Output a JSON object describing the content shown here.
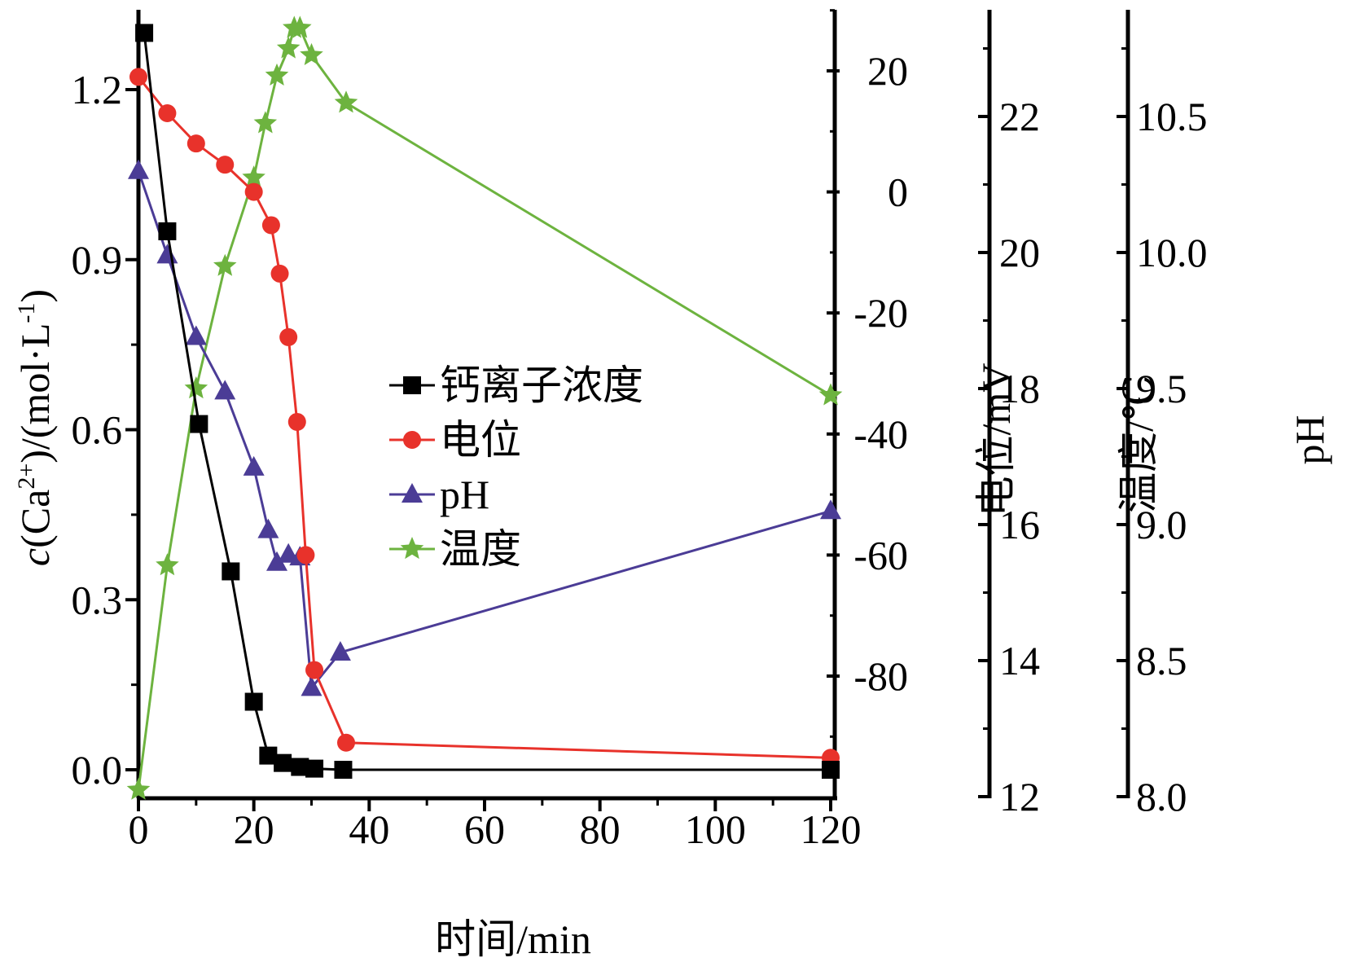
{
  "chart_data": {
    "type": "line",
    "x": [
      0,
      5,
      10,
      15,
      20,
      22.5,
      25,
      26.5,
      28,
      30,
      35,
      120
    ],
    "xlabel": "时间/min",
    "xlim": [
      0,
      120
    ],
    "xticks": [
      "0",
      "20",
      "40",
      "60",
      "80",
      "100",
      "120"
    ],
    "axes": {
      "y1": {
        "label_prefix": "c",
        "label_rest": "(Ca",
        "label_sup": "2+",
        "label_mid": ")/(mol·L",
        "label_sup2": "-1",
        "label_end": ")",
        "lim": [
          0,
          1.3
        ],
        "ticks": [
          "0.0",
          "0.3",
          "0.6",
          "0.9",
          "1.2"
        ],
        "tick_values": [
          0,
          0.3,
          0.6,
          0.9,
          1.2
        ]
      },
      "y2": {
        "label": "电位/mV",
        "lim": [
          -95,
          30
        ],
        "ticks": [
          "20",
          "0",
          "-20",
          "-40",
          "-60",
          "-80"
        ],
        "tick_values": [
          20,
          0,
          -20,
          -40,
          -60,
          -80
        ]
      },
      "y3": {
        "label": "温度/℃",
        "lim": [
          12,
          23.8
        ],
        "ticks": [
          "22",
          "20",
          "18",
          "16",
          "14",
          "12"
        ],
        "tick_values": [
          22,
          20,
          18,
          16,
          14,
          12
        ]
      },
      "y4": {
        "label": "pH",
        "lim": [
          8.0,
          10.9
        ],
        "ticks": [
          "10.5",
          "10.0",
          "9.5",
          "9.0",
          "8.5",
          "8.0"
        ],
        "tick_values": [
          10.5,
          10.0,
          9.5,
          9.0,
          8.5,
          8.0
        ]
      }
    },
    "series": [
      {
        "name": "钙离子浓度",
        "axis": "y1",
        "color": "#000000",
        "marker": "square",
        "x": [
          1,
          5,
          10.5,
          16,
          20,
          22.5,
          25,
          28,
          30.5,
          35.5,
          120
        ],
        "values": [
          1.3,
          0.95,
          0.61,
          0.35,
          0.12,
          0.025,
          0.012,
          0.005,
          0.002,
          0.0,
          0.0
        ]
      },
      {
        "name": "电位",
        "axis": "y2",
        "color": "#e8322b",
        "marker": "circle",
        "x": [
          0,
          5,
          10,
          15,
          20,
          23,
          24.5,
          26,
          27.5,
          29,
          30.5,
          36,
          120
        ],
        "values": [
          19,
          13,
          8,
          4.5,
          0,
          -5.5,
          -13.5,
          -24,
          -38,
          -60,
          -79,
          -91,
          -93.5
        ]
      },
      {
        "name": "pH",
        "axis": "y4",
        "color": "#4b3c96",
        "marker": "triangle",
        "x": [
          0,
          5,
          10,
          15,
          20,
          22.5,
          24,
          26,
          28,
          30,
          35,
          120
        ],
        "values": [
          10.3,
          9.99,
          9.69,
          9.49,
          9.21,
          8.98,
          8.86,
          8.89,
          8.88,
          8.4,
          8.53,
          9.05
        ]
      },
      {
        "name": "温度",
        "axis": "y3",
        "color": "#6db33f",
        "marker": "star",
        "x": [
          0,
          5,
          10,
          15,
          20,
          22,
          24,
          26,
          27,
          28,
          30,
          36,
          120
        ],
        "values": [
          12.1,
          15.4,
          18.0,
          19.8,
          21.1,
          21.9,
          22.6,
          23.0,
          23.3,
          23.3,
          22.9,
          22.2,
          17.9
        ]
      }
    ]
  }
}
